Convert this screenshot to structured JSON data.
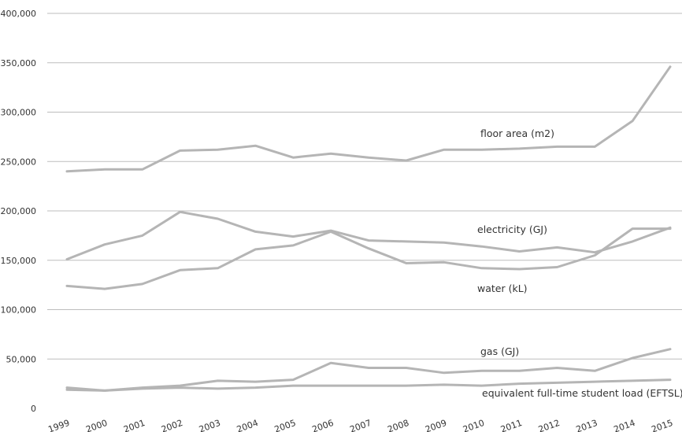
{
  "chart_data": {
    "type": "line",
    "title": "",
    "xlabel": "",
    "ylabel": "",
    "x": [
      "1999",
      "2000",
      "2001",
      "2002",
      "2003",
      "2004",
      "2005",
      "2006",
      "2007",
      "2008",
      "2009",
      "2010",
      "2011",
      "2012",
      "2013",
      "2014",
      "2015"
    ],
    "ylim": [
      0,
      400000
    ],
    "yticks": [
      0,
      50000,
      100000,
      150000,
      200000,
      250000,
      300000,
      350000,
      400000
    ],
    "ytick_labels": [
      "0",
      "50,000",
      "100,000",
      "150,000",
      "200,000",
      "250,000",
      "300,000",
      "350,000",
      "400,000"
    ],
    "grid": true,
    "legend": "none (series labelled directly on chart)",
    "line_color": "#b5b5b5",
    "series": [
      {
        "name": "floor area (m2)",
        "values": [
          240000,
          242000,
          242000,
          261000,
          262000,
          266000,
          254000,
          258000,
          254000,
          251000,
          262000,
          262000,
          263000,
          265000,
          265000,
          291000,
          346000
        ]
      },
      {
        "name": "electricity (GJ)",
        "values": [
          151000,
          166000,
          175000,
          199000,
          192000,
          179000,
          174000,
          180000,
          170000,
          169000,
          168000,
          164000,
          159000,
          163000,
          158000,
          169000,
          183000
        ]
      },
      {
        "name": "water (kL)",
        "values": [
          124000,
          121000,
          126000,
          140000,
          142000,
          161000,
          165000,
          179000,
          162000,
          147000,
          148000,
          142000,
          141000,
          143000,
          155000,
          182000,
          182000
        ]
      },
      {
        "name": "gas (GJ)",
        "values": [
          21000,
          18000,
          21000,
          23000,
          28000,
          27000,
          29000,
          46000,
          41000,
          41000,
          36000,
          38000,
          38000,
          41000,
          38000,
          51000,
          60000
        ]
      },
      {
        "name": "equivalent full-time student load (EFTSL)",
        "values": [
          19000,
          18000,
          20000,
          21000,
          20000,
          21000,
          23000,
          23000,
          23000,
          23000,
          24000,
          23000,
          25000,
          26000,
          27000,
          28000,
          29000
        ]
      }
    ]
  }
}
